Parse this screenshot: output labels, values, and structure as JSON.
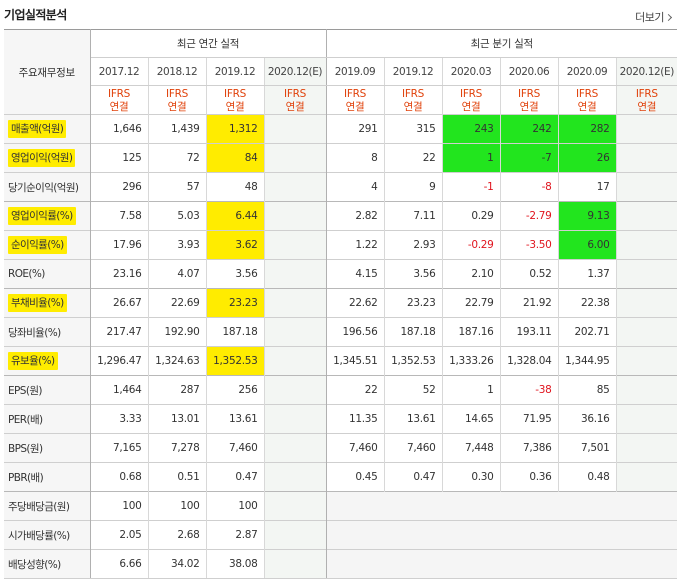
{
  "title": "기업실적분석",
  "more_label": "더보기",
  "header": {
    "corner": "주요재무정보",
    "annual_group": "최근 연간 실적",
    "quarter_group": "최근 분기 실적",
    "annual_periods": [
      "2017.12",
      "2018.12",
      "2019.12",
      "2020.12(E)"
    ],
    "quarter_periods": [
      "2019.09",
      "2019.12",
      "2020.03",
      "2020.06",
      "2020.09",
      "2020.12(E)"
    ],
    "ifrs_top": "IFRS",
    "ifrs_bottom": "연결"
  },
  "rows": [
    {
      "label": "매출액(억원)",
      "annual": [
        "1,646",
        "1,439",
        "1,312",
        ""
      ],
      "quarter": [
        "291",
        "315",
        "243",
        "242",
        "282",
        ""
      ]
    },
    {
      "label": "영업이익(억원)",
      "annual": [
        "125",
        "72",
        "84",
        ""
      ],
      "quarter": [
        "8",
        "22",
        "1",
        "-7",
        "26",
        ""
      ]
    },
    {
      "label": "당기순이익(억원)",
      "annual": [
        "296",
        "57",
        "48",
        ""
      ],
      "quarter": [
        "4",
        "9",
        "-1",
        "-8",
        "17",
        ""
      ]
    },
    {
      "label": "영업이익률(%)",
      "annual": [
        "7.58",
        "5.03",
        "6.44",
        ""
      ],
      "quarter": [
        "2.82",
        "7.11",
        "0.29",
        "-2.79",
        "9.13",
        ""
      ]
    },
    {
      "label": "순이익률(%)",
      "annual": [
        "17.96",
        "3.93",
        "3.62",
        ""
      ],
      "quarter": [
        "1.22",
        "2.93",
        "-0.29",
        "-3.50",
        "6.00",
        ""
      ]
    },
    {
      "label": "ROE(%)",
      "annual": [
        "23.16",
        "4.07",
        "3.56",
        ""
      ],
      "quarter": [
        "4.15",
        "3.56",
        "2.10",
        "0.52",
        "1.37",
        ""
      ]
    },
    {
      "label": "부채비율(%)",
      "annual": [
        "26.67",
        "22.69",
        "23.23",
        ""
      ],
      "quarter": [
        "22.62",
        "23.23",
        "22.79",
        "21.92",
        "22.38",
        ""
      ]
    },
    {
      "label": "당좌비율(%)",
      "annual": [
        "217.47",
        "192.90",
        "187.18",
        ""
      ],
      "quarter": [
        "196.56",
        "187.18",
        "187.16",
        "193.11",
        "202.71",
        ""
      ]
    },
    {
      "label": "유보율(%)",
      "annual": [
        "1,296.47",
        "1,324.63",
        "1,352.53",
        ""
      ],
      "quarter": [
        "1,345.51",
        "1,352.53",
        "1,333.26",
        "1,328.04",
        "1,344.95",
        ""
      ]
    },
    {
      "label": "EPS(원)",
      "annual": [
        "1,464",
        "287",
        "256",
        ""
      ],
      "quarter": [
        "22",
        "52",
        "1",
        "-38",
        "85",
        ""
      ]
    },
    {
      "label": "PER(배)",
      "annual": [
        "3.33",
        "13.01",
        "13.61",
        ""
      ],
      "quarter": [
        "11.35",
        "13.61",
        "14.65",
        "71.95",
        "36.16",
        ""
      ]
    },
    {
      "label": "BPS(원)",
      "annual": [
        "7,165",
        "7,278",
        "7,460",
        ""
      ],
      "quarter": [
        "7,460",
        "7,460",
        "7,448",
        "7,386",
        "7,501",
        ""
      ]
    },
    {
      "label": "PBR(배)",
      "annual": [
        "0.68",
        "0.51",
        "0.47",
        ""
      ],
      "quarter": [
        "0.45",
        "0.47",
        "0.30",
        "0.36",
        "0.48",
        ""
      ]
    },
    {
      "label": "주당배당금(원)",
      "annual": [
        "100",
        "100",
        "100",
        ""
      ],
      "quarter": [
        "",
        "",
        "",
        "",
        "",
        ""
      ]
    },
    {
      "label": "시가배당률(%)",
      "annual": [
        "2.05",
        "2.68",
        "2.87",
        ""
      ],
      "quarter": [
        "",
        "",
        "",
        "",
        "",
        ""
      ]
    },
    {
      "label": "배당성향(%)",
      "annual": [
        "6.66",
        "34.02",
        "38.08",
        ""
      ],
      "quarter": [
        "",
        "",
        "",
        "",
        "",
        ""
      ]
    }
  ],
  "colors": {
    "highlight_yellow": "#ffec00",
    "highlight_green": "#22e51e",
    "ifrs_orange": "#e0410a",
    "negative_red": "#e0141e"
  }
}
